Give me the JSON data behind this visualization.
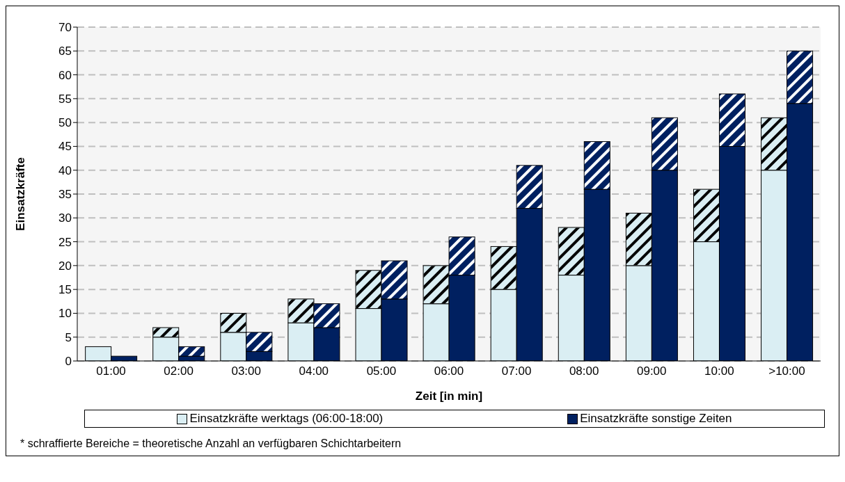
{
  "chart_data": {
    "type": "bar",
    "xlabel": "Zeit [in min]",
    "ylabel": "Einsatzkräfte",
    "categories": [
      "01:00",
      "02:00",
      "03:00",
      "04:00",
      "05:00",
      "06:00",
      "07:00",
      "08:00",
      "09:00",
      "10:00",
      ">10:00"
    ],
    "series": [
      {
        "name": "Einsatzkräfte werktags (06:00-18:00)",
        "color": "#daeef3",
        "values": [
          3,
          5,
          6,
          8,
          11,
          12,
          15,
          18,
          20,
          25,
          40
        ],
        "base": [
          0,
          0,
          0,
          0,
          0,
          0,
          0,
          0,
          0,
          0,
          0
        ]
      },
      {
        "color": "#daeef3",
        "values": [
          null,
          2,
          4,
          5,
          8,
          8,
          9,
          10,
          11,
          11,
          11
        ],
        "base": [
          null,
          5,
          6,
          8,
          11,
          12,
          15,
          18,
          20,
          25,
          40
        ]
      },
      {
        "name": "Einsatzkräfte sonstige Zeiten",
        "color": "#002060",
        "values": [
          1,
          1,
          2,
          7,
          13,
          18,
          32,
          36,
          40,
          45,
          54
        ],
        "base": [
          0,
          0,
          0,
          0,
          0,
          0,
          0,
          0,
          0,
          0,
          0
        ]
      },
      {
        "color": "#002060",
        "values": [
          null,
          2,
          4,
          5,
          8,
          8,
          9,
          10,
          11,
          11,
          11
        ],
        "base": [
          null,
          1,
          2,
          7,
          13,
          18,
          32,
          36,
          40,
          45,
          54
        ]
      }
    ],
    "ylim": [
      0,
      70
    ],
    "yticks": [
      0,
      5,
      10,
      15,
      20,
      25,
      30,
      35,
      40,
      45,
      50,
      55,
      60,
      65,
      70
    ],
    "grid": "y",
    "legend": "bottom",
    "annotations": [
      "* schraffierte Bereiche = theoretische Anzahl an verfügbaren Schichtarbeitern"
    ]
  }
}
